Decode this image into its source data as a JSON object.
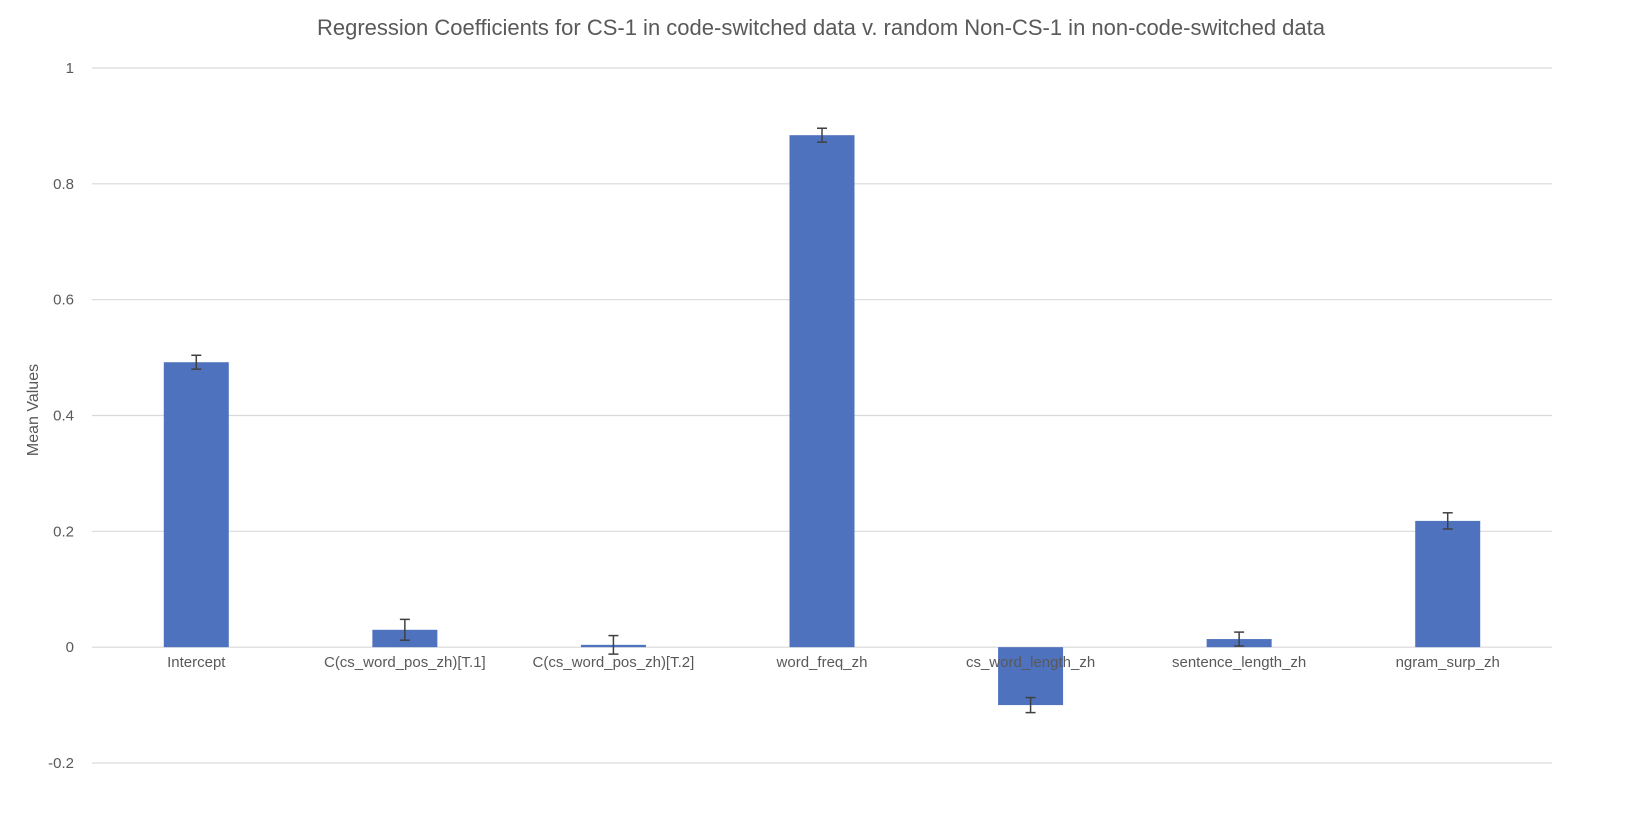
{
  "chart_data": {
    "type": "bar",
    "title": "Regression Coefficients for CS-1 in code-switched data v. random Non-CS-1 in non-code-switched data",
    "xlabel": "",
    "ylabel": "Mean Values",
    "ylim": [
      -0.2,
      1
    ],
    "yticks": [
      1,
      0.8,
      0.6,
      0.4,
      0.2,
      0,
      -0.2
    ],
    "ytick_labels": [
      "1",
      "0.8",
      "0.6",
      "0.4",
      "0.2",
      "0",
      "-0.2"
    ],
    "grid": true,
    "legend": "none",
    "categories": [
      "Intercept",
      "C(cs_word_pos_zh)[T.1]",
      "C(cs_word_pos_zh)[T.2]",
      "word_freq_zh",
      "cs_word_length_zh",
      "sentence_length_zh",
      "ngram_surp_zh"
    ],
    "values": [
      0.492,
      0.03,
      0.004,
      0.884,
      -0.1,
      0.014,
      0.218
    ],
    "errors": [
      0.012,
      0.018,
      0.016,
      0.012,
      0.013,
      0.012,
      0.014
    ],
    "colors": {
      "bar": "#4f72be",
      "error_bar": "#404040",
      "grid": "#d9d9d9",
      "text": "#595959"
    }
  }
}
